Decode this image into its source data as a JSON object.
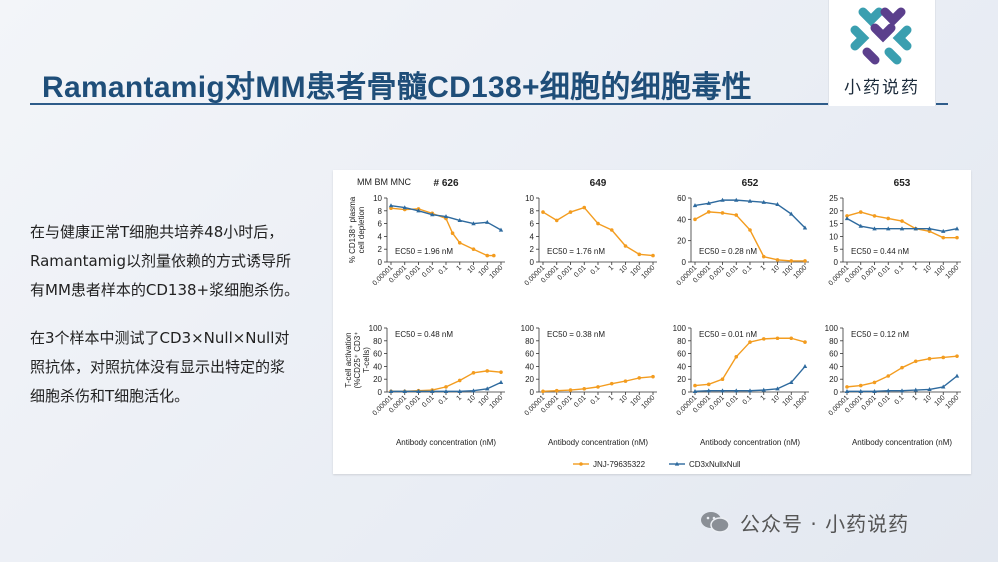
{
  "slide": {
    "title": "Ramantamig对MM患者骨髓CD138+细胞的细胞毒性",
    "paragraph1": [
      "在与健康正常T细胞共培养48小时后，",
      "Ramantamig以剂量依赖的方式诱导所",
      "有MM患者样本的CD138+浆细胞杀伤。"
    ],
    "paragraph2": [
      "在3个样本中测试了CD3×Null×Null对",
      "照抗体，对照抗体没有显示出特定的浆",
      "细胞杀伤和T细胞活化。"
    ],
    "logo_text": "小药说药",
    "footer": "公众号 · 小药说药",
    "colors": {
      "title": "#1f4e79",
      "orange": "#f39c1f",
      "blue": "#2e6a9e"
    }
  },
  "chart_data": {
    "type": "line",
    "figure_label": "MM BM MNC",
    "x_tick_labels": [
      "0.00001",
      "0.0001",
      "0.001",
      "0.01",
      "0.1",
      "1",
      "10",
      "100",
      "1000"
    ],
    "xlabel": "Antibody concentration (nM)",
    "legend": [
      {
        "name": "JNJ-79635322",
        "color": "#f39c1f"
      },
      {
        "name": "CD3xNullxNull",
        "color": "#2e6a9e"
      }
    ],
    "row_ylabels": [
      [
        "% CD138⁺ plasma",
        "cell depletion"
      ],
      [
        "T-cell activation",
        "(%CD25⁺ CD3⁺",
        "T-cells)"
      ]
    ],
    "panels": [
      {
        "sample": "# 626",
        "row": 0,
        "ylim": [
          0,
          10
        ],
        "yticks": [
          0,
          2,
          4,
          6,
          8,
          10
        ],
        "ec50": "EC50 = 1.96 nM",
        "orange": {
          "x": [
            1e-05,
            0.0001,
            0.001,
            0.01,
            0.1,
            0.3,
            1,
            10,
            100,
            300
          ],
          "y": [
            8.4,
            8.2,
            8.3,
            7.6,
            6.8,
            4.5,
            3.0,
            2.0,
            1.0,
            1.0
          ]
        },
        "blue": {
          "x": [
            1e-05,
            0.0001,
            0.001,
            0.01,
            0.1,
            1,
            10,
            100,
            1000
          ],
          "y": [
            8.8,
            8.5,
            8.0,
            7.4,
            7.1,
            6.5,
            6.0,
            6.2,
            5.0
          ]
        }
      },
      {
        "sample": "649",
        "row": 0,
        "ylim": [
          0,
          10
        ],
        "yticks": [
          0,
          2,
          4,
          6,
          8,
          10
        ],
        "ec50": "EC50 = 1.76 nM",
        "orange": {
          "x": [
            1e-05,
            0.0001,
            0.001,
            0.01,
            0.1,
            1,
            10,
            100,
            1000
          ],
          "y": [
            7.8,
            6.5,
            7.8,
            8.5,
            6.0,
            5.0,
            2.5,
            1.2,
            1.0
          ]
        },
        "blue": null
      },
      {
        "sample": "652",
        "row": 0,
        "ylim": [
          0,
          60
        ],
        "yticks": [
          0,
          20,
          40,
          60
        ],
        "ec50": "EC50 = 0.28 nM",
        "orange": {
          "x": [
            1e-05,
            0.0001,
            0.001,
            0.01,
            0.1,
            1,
            10,
            100,
            1000
          ],
          "y": [
            40,
            47,
            46,
            44,
            30,
            5,
            2,
            1,
            1
          ]
        },
        "blue": {
          "x": [
            1e-05,
            0.0001,
            0.001,
            0.01,
            0.1,
            1,
            10,
            100,
            1000
          ],
          "y": [
            53,
            55,
            58,
            58,
            57,
            56,
            54,
            45,
            32
          ]
        }
      },
      {
        "sample": "653",
        "row": 0,
        "ylim": [
          0,
          25
        ],
        "yticks": [
          0,
          5,
          10,
          15,
          20,
          25
        ],
        "ec50": "EC50 = 0.44 nM",
        "orange": {
          "x": [
            1e-05,
            0.0001,
            0.001,
            0.01,
            0.1,
            1,
            10,
            100,
            1000
          ],
          "y": [
            18,
            19.5,
            18,
            17,
            16,
            13,
            12,
            9.5,
            9.5
          ]
        },
        "blue": {
          "x": [
            1e-05,
            0.0001,
            0.001,
            0.01,
            0.1,
            1,
            10,
            100,
            1000
          ],
          "y": [
            17,
            14,
            13,
            13,
            13,
            13,
            13,
            12,
            13
          ]
        }
      },
      {
        "row": 1,
        "ylim": [
          0,
          100
        ],
        "yticks": [
          0,
          20,
          40,
          60,
          80,
          100
        ],
        "ec50": "EC50 = 0.48 nM",
        "orange": {
          "x": [
            1e-05,
            0.0001,
            0.001,
            0.01,
            0.1,
            1,
            10,
            100,
            1000
          ],
          "y": [
            1,
            1,
            2,
            3,
            8,
            18,
            30,
            33,
            31
          ]
        },
        "blue": {
          "x": [
            1e-05,
            0.0001,
            0.001,
            0.01,
            0.1,
            1,
            10,
            100,
            1000
          ],
          "y": [
            1,
            1,
            1,
            1,
            1,
            1,
            2,
            5,
            15
          ]
        }
      },
      {
        "row": 1,
        "ylim": [
          0,
          100
        ],
        "yticks": [
          0,
          20,
          40,
          60,
          80,
          100
        ],
        "ec50": "EC50 = 0.38 nM",
        "orange": {
          "x": [
            1e-05,
            0.0001,
            0.001,
            0.01,
            0.1,
            1,
            10,
            100,
            1000
          ],
          "y": [
            1,
            2,
            3,
            5,
            8,
            13,
            17,
            22,
            24
          ]
        },
        "blue": null
      },
      {
        "row": 1,
        "ylim": [
          0,
          100
        ],
        "yticks": [
          0,
          20,
          40,
          60,
          80,
          100
        ],
        "ec50": "EC50 = 0.01 nM",
        "orange": {
          "x": [
            1e-05,
            0.0001,
            0.001,
            0.01,
            0.1,
            1,
            10,
            100,
            1000
          ],
          "y": [
            10,
            12,
            20,
            55,
            78,
            83,
            84,
            84,
            78
          ]
        },
        "blue": {
          "x": [
            1e-05,
            0.0001,
            0.001,
            0.01,
            0.1,
            1,
            10,
            100,
            1000
          ],
          "y": [
            1,
            2,
            2,
            2,
            2,
            3,
            5,
            15,
            40
          ]
        }
      },
      {
        "row": 1,
        "ylim": [
          0,
          100
        ],
        "yticks": [
          0,
          20,
          40,
          60,
          80,
          100
        ],
        "ec50": "EC50 = 0.12 nM",
        "orange": {
          "x": [
            1e-05,
            0.0001,
            0.001,
            0.01,
            0.1,
            1,
            10,
            100,
            1000
          ],
          "y": [
            8,
            10,
            15,
            25,
            38,
            48,
            52,
            54,
            56
          ]
        },
        "blue": {
          "x": [
            1e-05,
            0.0001,
            0.001,
            0.01,
            0.1,
            1,
            10,
            100,
            1000
          ],
          "y": [
            1,
            1,
            1,
            2,
            2,
            3,
            4,
            8,
            25
          ]
        }
      }
    ]
  }
}
